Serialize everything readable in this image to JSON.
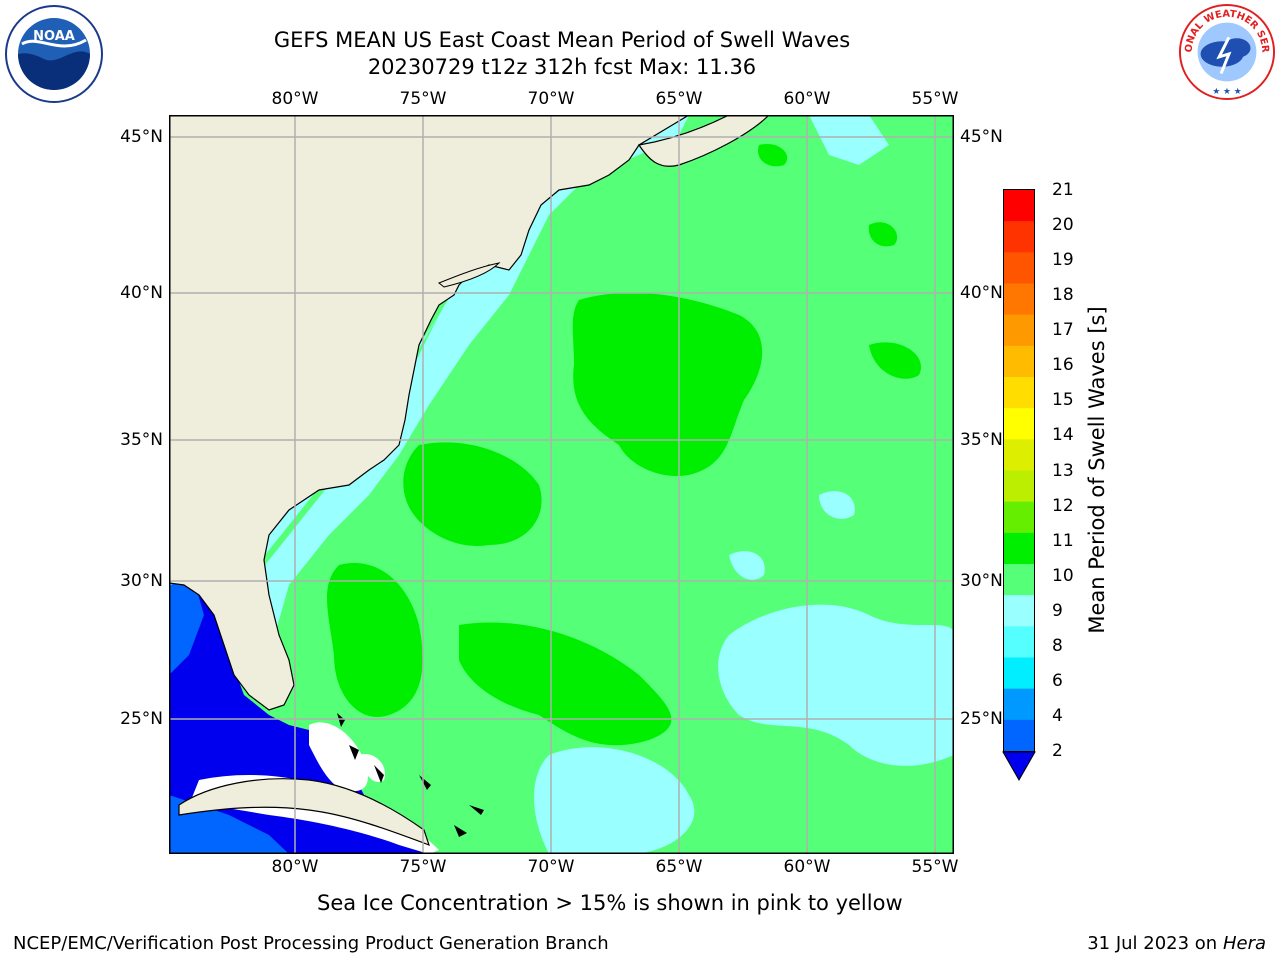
{
  "header": {
    "title_line1": "GEFS MEAN US East Coast Mean Period of Swell Waves",
    "title_line2": "20230729 t12z 312h fcst   Max: 11.36"
  },
  "logos": {
    "left": {
      "name": "noaa-logo-icon",
      "text": "NOAA"
    },
    "right": {
      "name": "national-weather-service-logo-icon",
      "text": "NATIONAL WEATHER SERVICE"
    }
  },
  "map": {
    "lon_labels": [
      "80°W",
      "75°W",
      "70°W",
      "65°W",
      "60°W",
      "55°W"
    ],
    "lat_labels": [
      "45°N",
      "40°N",
      "35°N",
      "30°N",
      "25°N"
    ],
    "colors": {
      "land": "#efeddc",
      "grid": "#b0b0b0",
      "coast": "#000000"
    }
  },
  "colorbar": {
    "label": "Mean Period of Swell Waves [s]",
    "ticks": [
      "21",
      "20",
      "19",
      "18",
      "17",
      "16",
      "15",
      "14",
      "13",
      "12",
      "11",
      "10",
      "9",
      "8",
      "6",
      "4",
      "2"
    ],
    "colors_top_to_bottom": [
      "#ff0000",
      "#ff3300",
      "#ff5500",
      "#ff7700",
      "#ff9900",
      "#ffbb00",
      "#ffdd00",
      "#ffff00",
      "#ddee00",
      "#bbee00",
      "#66ee00",
      "#00ee00",
      "#55ff77",
      "#99ffff",
      "#55ffff",
      "#00eeff",
      "#0099ff",
      "#0066ff"
    ],
    "under_color": "#0000ee"
  },
  "notes": {
    "sea_ice": "Sea Ice Concentration > 15% is shown in pink to yellow"
  },
  "footer": {
    "left": "NCEP/EMC/Verification Post Processing Product Generation Branch",
    "right_date": "31 Jul 2023 on ",
    "right_host": "Hera"
  }
}
